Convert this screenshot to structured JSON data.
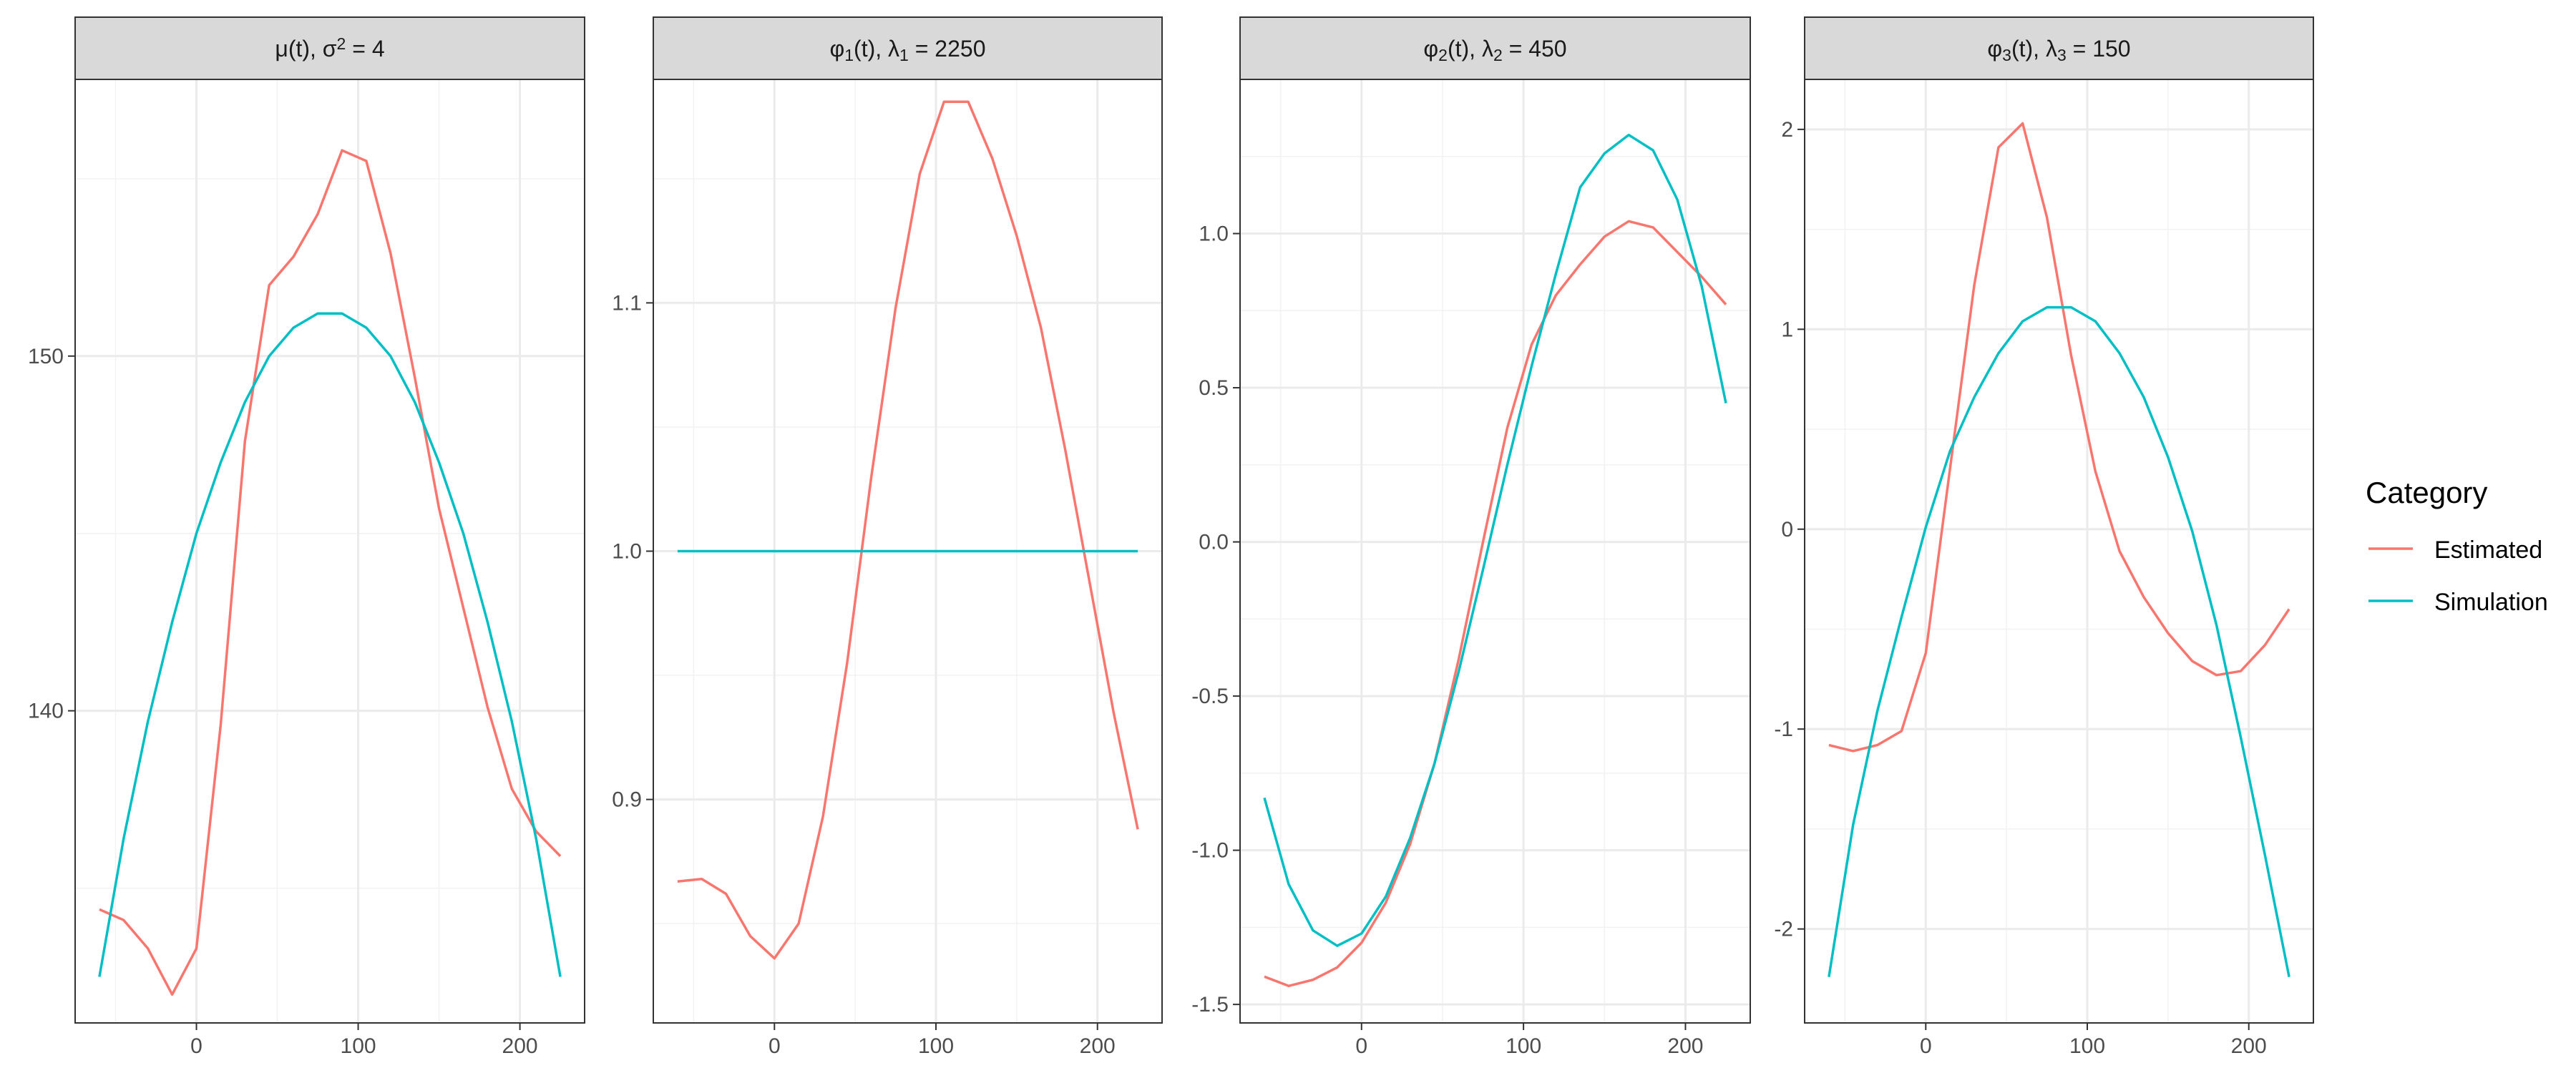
{
  "chart_data": [
    {
      "type": "line",
      "panel_title": {
        "base": "μ(t), σ",
        "sup": "2",
        "tail": " = 4"
      },
      "x": [
        -60,
        -45,
        -30,
        -15,
        0,
        15,
        30,
        45,
        60,
        75,
        90,
        105,
        120,
        135,
        150,
        165,
        180,
        195,
        210,
        225
      ],
      "xlim": [
        -75,
        240
      ],
      "x_ticks": [
        0,
        100,
        200
      ],
      "ylim": [
        131.2,
        157.8
      ],
      "y_ticks": [
        140,
        150
      ],
      "grid": true,
      "series": [
        {
          "name": "Estimated",
          "values": [
            134.4,
            134.1,
            133.3,
            132.0,
            133.3,
            139.6,
            147.6,
            152.0,
            152.8,
            154.0,
            155.8,
            155.5,
            152.9,
            149.4,
            145.7,
            142.9,
            140.1,
            137.8,
            136.6,
            135.9
          ]
        },
        {
          "name": "Simulation",
          "values": [
            132.5,
            136.4,
            139.7,
            142.5,
            145.0,
            147.0,
            148.7,
            150.0,
            150.8,
            151.2,
            151.2,
            150.8,
            150.0,
            148.7,
            147.0,
            145.0,
            142.5,
            139.7,
            136.4,
            132.5
          ]
        }
      ]
    },
    {
      "type": "line",
      "panel_title": {
        "base": "φ",
        "sub": "1",
        "mid": "(t), λ",
        "sub2": "1",
        "tail": " = 2250"
      },
      "x": [
        -60,
        -45,
        -30,
        -15,
        0,
        15,
        30,
        45,
        60,
        75,
        90,
        105,
        120,
        135,
        150,
        165,
        180,
        195,
        210,
        225
      ],
      "xlim": [
        -75,
        240
      ],
      "x_ticks": [
        0,
        100,
        200
      ],
      "ylim": [
        0.81,
        1.19
      ],
      "y_ticks": [
        0.9,
        1.0,
        1.1
      ],
      "y_tick_labels": [
        "0.9",
        "1.0",
        "1.1"
      ],
      "grid": true,
      "series": [
        {
          "name": "Estimated",
          "values": [
            0.867,
            0.868,
            0.862,
            0.845,
            0.836,
            0.85,
            0.893,
            0.955,
            1.03,
            1.098,
            1.152,
            1.181,
            1.181,
            1.158,
            1.127,
            1.09,
            1.041,
            0.988,
            0.935,
            0.888
          ]
        },
        {
          "name": "Simulation",
          "values": [
            1,
            1,
            1,
            1,
            1,
            1,
            1,
            1,
            1,
            1,
            1,
            1,
            1,
            1,
            1,
            1,
            1,
            1,
            1,
            1
          ]
        }
      ]
    },
    {
      "type": "line",
      "panel_title": {
        "base": "φ",
        "sub": "2",
        "mid": "(t), λ",
        "sub2": "2",
        "tail": " = 450"
      },
      "x": [
        -60,
        -45,
        -30,
        -15,
        0,
        15,
        30,
        45,
        60,
        75,
        90,
        105,
        120,
        135,
        150,
        165,
        180,
        195,
        210,
        225
      ],
      "xlim": [
        -75,
        240
      ],
      "x_ticks": [
        0,
        100,
        200
      ],
      "ylim": [
        -1.56,
        1.5
      ],
      "y_ticks": [
        -1.5,
        -1.0,
        -0.5,
        0.0,
        0.5,
        1.0
      ],
      "y_tick_labels": [
        "-1.5",
        "-1.0",
        "-0.5",
        "0.0",
        "0.5",
        "1.0"
      ],
      "grid": true,
      "series": [
        {
          "name": "Estimated",
          "values": [
            -1.41,
            -1.44,
            -1.42,
            -1.38,
            -1.3,
            -1.17,
            -0.98,
            -0.72,
            -0.38,
            0.0,
            0.37,
            0.64,
            0.8,
            0.9,
            0.99,
            1.04,
            1.02,
            0.94,
            0.86,
            0.77
          ]
        },
        {
          "name": "Simulation",
          "values": [
            -0.83,
            -1.11,
            -1.26,
            -1.31,
            -1.27,
            -1.15,
            -0.96,
            -0.72,
            -0.42,
            -0.09,
            0.25,
            0.57,
            0.87,
            1.15,
            1.26,
            1.32,
            1.27,
            1.11,
            0.83,
            0.45
          ]
        }
      ]
    },
    {
      "type": "line",
      "panel_title": {
        "base": "φ",
        "sub": "3",
        "mid": "(t), λ",
        "sub2": "3",
        "tail": " = 150"
      },
      "x": [
        -60,
        -45,
        -30,
        -15,
        0,
        15,
        30,
        45,
        60,
        75,
        90,
        105,
        120,
        135,
        150,
        165,
        180,
        195,
        210,
        225
      ],
      "xlim": [
        -75,
        240
      ],
      "x_ticks": [
        0,
        100,
        200
      ],
      "ylim": [
        -2.47,
        2.25
      ],
      "y_ticks": [
        -2,
        -1,
        0,
        1,
        2
      ],
      "grid": true,
      "series": [
        {
          "name": "Estimated",
          "values": [
            -1.08,
            -1.11,
            -1.08,
            -1.01,
            -0.62,
            0.3,
            1.22,
            1.91,
            2.03,
            1.56,
            0.87,
            0.29,
            -0.11,
            -0.34,
            -0.52,
            -0.66,
            -0.73,
            -0.71,
            -0.58,
            -0.4
          ]
        },
        {
          "name": "Simulation",
          "values": [
            -2.24,
            -1.48,
            -0.91,
            -0.44,
            0.01,
            0.39,
            0.66,
            0.88,
            1.04,
            1.11,
            1.11,
            1.04,
            0.88,
            0.66,
            0.36,
            -0.01,
            -0.48,
            -1.04,
            -1.63,
            -2.24
          ]
        }
      ]
    }
  ],
  "legend": {
    "title": "Category",
    "items": [
      {
        "label": "Estimated",
        "color": "#F8766D"
      },
      {
        "label": "Simulation",
        "color": "#00BFC4"
      }
    ]
  },
  "colors": {
    "Estimated": "#F8766D",
    "Simulation": "#00BFC4"
  }
}
